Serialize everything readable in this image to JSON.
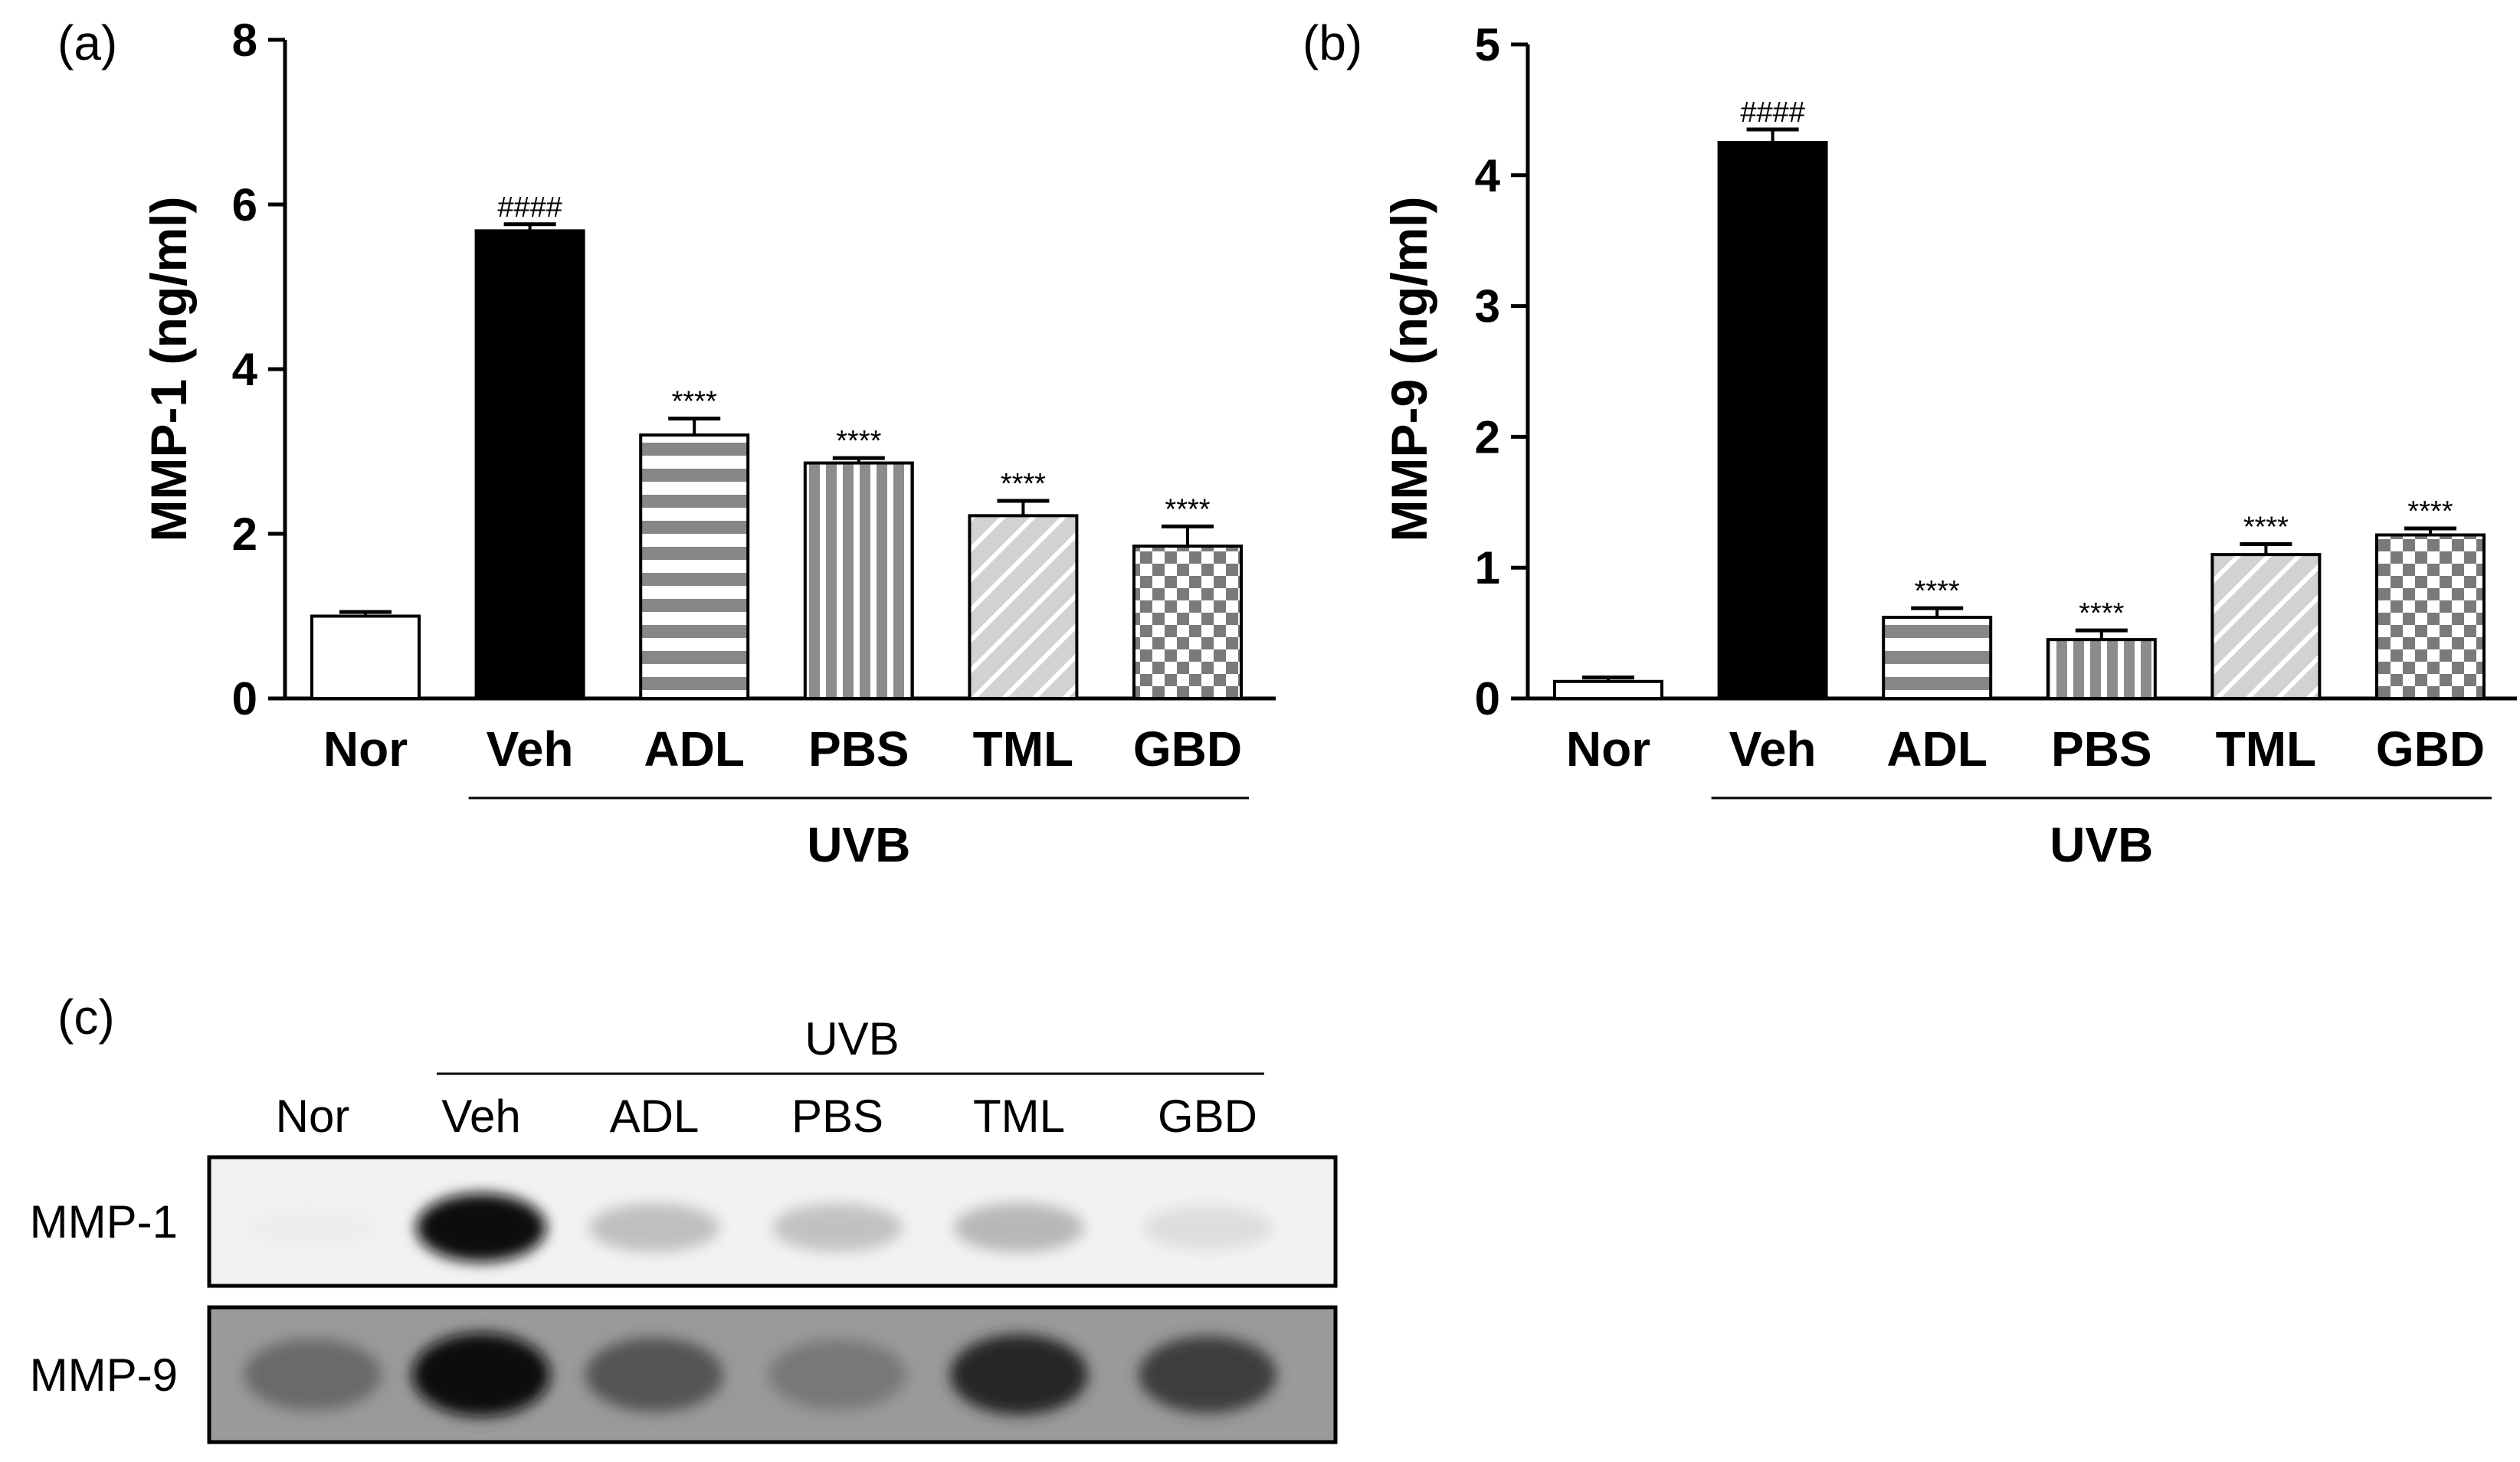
{
  "colors": {
    "bar_outline": "#000000",
    "veh_fill": "#000000",
    "nor_fill": "#ffffff",
    "adl_fill": "#878787",
    "pbs_fill": "#8c8c8c",
    "tml_fill": "#d2d2d2",
    "gbd_fill": "#7a7a7a",
    "blot_background": "#f0f0f0",
    "blot_band": "#111111"
  },
  "chart_data": [
    {
      "type": "bar",
      "panel": "(a)",
      "ylabel": "MMP-1 (ng/ml)",
      "xlabel": "",
      "ylim": [
        0,
        8
      ],
      "yticks": [
        0,
        2,
        4,
        6,
        8
      ],
      "categories": [
        "Nor",
        "Veh",
        "ADL",
        "PBS",
        "TML",
        "GBD"
      ],
      "values": [
        1.0,
        5.68,
        3.2,
        2.86,
        2.22,
        1.85
      ],
      "errors": [
        0.05,
        0.08,
        0.2,
        0.06,
        0.18,
        0.24
      ],
      "patterns": [
        "open",
        "solid",
        "hstripe",
        "vstripe",
        "diag",
        "checker"
      ],
      "significance": [
        "",
        "####",
        "****",
        "****",
        "****",
        "****"
      ],
      "group": {
        "label": "UVB",
        "from": "Veh",
        "to": "GBD"
      }
    },
    {
      "type": "bar",
      "panel": "(b)",
      "ylabel": "MMP-9 (ng/ml)",
      "xlabel": "",
      "ylim": [
        0,
        5
      ],
      "yticks": [
        0,
        1,
        2,
        3,
        4,
        5
      ],
      "categories": [
        "Nor",
        "Veh",
        "ADL",
        "PBS",
        "TML",
        "GBD"
      ],
      "values": [
        0.13,
        4.25,
        0.62,
        0.45,
        1.1,
        1.25
      ],
      "errors": [
        0.03,
        0.1,
        0.07,
        0.07,
        0.08,
        0.05
      ],
      "patterns": [
        "open",
        "solid",
        "hstripe",
        "vstripe",
        "diag",
        "checker"
      ],
      "significance": [
        "",
        "####",
        "****",
        "****",
        "****",
        "****"
      ],
      "group": {
        "label": "UVB",
        "from": "Veh",
        "to": "GBD"
      }
    }
  ],
  "blot": {
    "panel": "(c)",
    "group_label": "UVB",
    "lanes": [
      "Nor",
      "Veh",
      "ADL",
      "PBS",
      "TML",
      "GBD"
    ],
    "rows": [
      {
        "label": "MMP-1",
        "intensities": [
          0.06,
          1.0,
          0.33,
          0.32,
          0.36,
          0.18
        ]
      },
      {
        "label": "MMP-9",
        "intensities": [
          0.6,
          0.98,
          0.68,
          0.55,
          0.88,
          0.78
        ]
      }
    ]
  }
}
